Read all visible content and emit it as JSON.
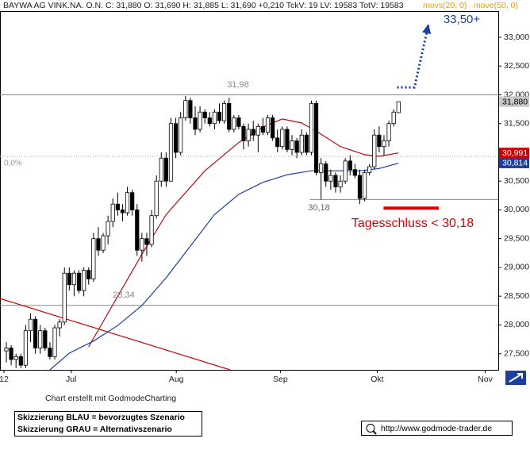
{
  "chart_data": {
    "type": "candlestick",
    "title": "BAYWA AG VINK.NA. O.N. C: 31,880 O: 31,690 H: 31,885 L: 31,690 +0,210 TckV: 19 LV: 19583 TotV: 19583",
    "open": [
      27.55,
      27.6,
      27.4,
      27.45,
      27.3,
      27.9,
      28.1,
      27.6,
      27.9,
      27.6,
      27.45,
      27.95,
      28.05,
      28.9,
      28.7,
      28.9,
      28.6,
      28.95,
      28.8,
      29.5,
      29.3,
      29.55,
      29.8,
      30.1,
      30.0,
      29.95,
      30.3,
      30.0,
      29.3,
      29.5,
      29.4,
      29.9,
      30.5,
      30.9,
      30.5,
      31.5,
      31.0,
      31.6,
      31.9,
      31.6,
      31.4,
      31.7,
      31.6,
      31.5,
      31.7,
      31.55,
      31.85,
      31.4,
      31.6,
      31.45,
      31.2,
      31.4,
      31.3,
      31.45,
      31.35,
      31.6,
      31.25,
      31.1,
      31.4,
      31.05,
      31.2,
      31.0,
      31.3,
      31.0,
      31.85,
      30.65,
      30.8,
      30.5,
      30.6,
      30.4,
      30.5,
      30.85,
      30.7,
      30.6,
      30.2,
      30.65,
      30.75,
      31.3,
      31.1,
      31.2,
      31.5,
      31.69
    ],
    "high": [
      27.7,
      27.65,
      27.5,
      27.5,
      28.0,
      28.2,
      28.15,
      28.0,
      27.95,
      27.7,
      28.0,
      28.1,
      29.0,
      29.0,
      28.95,
      28.95,
      29.0,
      29.0,
      29.6,
      29.7,
      29.6,
      29.9,
      30.2,
      30.3,
      30.1,
      30.4,
      30.35,
      30.1,
      29.6,
      29.6,
      30.0,
      30.6,
      31.0,
      31.0,
      31.6,
      31.6,
      31.7,
      31.98,
      31.95,
      31.8,
      31.8,
      31.75,
      31.7,
      31.75,
      31.85,
      31.9,
      31.95,
      31.65,
      31.65,
      31.5,
      31.5,
      31.55,
      31.5,
      31.6,
      31.65,
      31.65,
      31.4,
      31.45,
      31.45,
      31.3,
      31.25,
      31.4,
      31.35,
      31.9,
      31.9,
      30.9,
      30.85,
      30.7,
      30.65,
      30.6,
      30.9,
      30.95,
      30.8,
      30.7,
      30.7,
      30.8,
      31.4,
      31.45,
      31.3,
      31.55,
      31.75,
      31.885
    ],
    "low": [
      27.35,
      27.3,
      27.25,
      27.25,
      27.25,
      27.7,
      27.5,
      27.5,
      27.55,
      27.4,
      27.4,
      27.8,
      28.0,
      28.6,
      28.5,
      28.55,
      28.5,
      28.7,
      28.75,
      29.2,
      29.25,
      29.4,
      29.7,
      29.9,
      29.8,
      29.9,
      29.9,
      29.2,
      29.1,
      29.2,
      29.35,
      29.85,
      30.4,
      30.4,
      30.5,
      30.9,
      30.95,
      31.55,
      31.5,
      31.3,
      31.35,
      31.5,
      31.45,
      31.4,
      31.5,
      31.5,
      31.35,
      31.35,
      31.4,
      31.05,
      31.1,
      31.2,
      31.0,
      31.3,
      31.3,
      31.2,
      31.0,
      31.05,
      31.0,
      30.95,
      30.9,
      30.95,
      30.95,
      30.95,
      30.6,
      30.18,
      30.4,
      30.35,
      30.3,
      30.3,
      30.45,
      30.6,
      30.55,
      30.1,
      30.15,
      30.6,
      30.7,
      31.0,
      30.95,
      31.1,
      31.45,
      31.69
    ],
    "close": [
      27.6,
      27.4,
      27.45,
      27.3,
      27.9,
      28.1,
      27.6,
      27.9,
      27.6,
      27.45,
      27.95,
      28.05,
      28.9,
      28.7,
      28.9,
      28.6,
      28.95,
      28.8,
      29.5,
      29.3,
      29.55,
      29.8,
      30.1,
      30.0,
      29.95,
      30.3,
      30.0,
      29.3,
      29.5,
      29.4,
      29.9,
      30.5,
      30.9,
      30.5,
      31.5,
      31.0,
      31.6,
      31.9,
      31.6,
      31.4,
      31.7,
      31.6,
      31.5,
      31.7,
      31.55,
      31.85,
      31.4,
      31.6,
      31.45,
      31.2,
      31.4,
      31.3,
      31.45,
      31.35,
      31.6,
      31.25,
      31.1,
      31.4,
      31.05,
      31.2,
      31.0,
      31.3,
      31.0,
      31.85,
      30.65,
      30.8,
      30.5,
      30.6,
      30.4,
      30.5,
      30.85,
      30.7,
      30.6,
      30.2,
      30.65,
      30.75,
      31.3,
      31.1,
      31.2,
      31.5,
      31.7,
      31.88
    ],
    "up_color": "#ffffff",
    "down_color": "#000000",
    "series": [
      {
        "name": "movs(20, 0)",
        "color": "#b01010",
        "x": [
          17,
          28,
          33,
          41,
          48,
          53,
          57,
          61,
          64,
          69,
          74,
          77,
          81
        ],
        "values": [
          27.62,
          29.23,
          29.92,
          30.68,
          31.17,
          31.44,
          31.58,
          31.51,
          31.37,
          31.1,
          30.96,
          30.93,
          30.99
        ]
      },
      {
        "name": "move(50, 0)",
        "color": "#1a3fa0",
        "x": [
          9,
          13,
          18,
          23,
          28,
          33,
          38,
          43,
          48,
          53,
          58,
          63,
          68,
          73,
          77,
          81
        ],
        "values": [
          27.22,
          27.51,
          27.72,
          27.99,
          28.34,
          28.82,
          29.37,
          29.92,
          30.27,
          30.48,
          30.61,
          30.68,
          30.68,
          30.68,
          30.72,
          30.81
        ]
      }
    ],
    "legend_color": "#e0a000",
    "xlim": [
      -1.31,
      101.6
    ],
    "xticks": [
      {
        "value": -0.5,
        "label": "12"
      },
      {
        "value": 13.4,
        "label": "Jul"
      },
      {
        "value": 35.1,
        "label": "Aug"
      },
      {
        "value": 56.6,
        "label": "Sep"
      },
      {
        "value": 76.6,
        "label": "Okt"
      },
      {
        "value": 98.9,
        "label": "Nov"
      }
    ],
    "ylim": [
      27.22,
      33.455
    ],
    "yticks": [
      {
        "value": 27.5,
        "label": "27,500"
      },
      {
        "value": 28,
        "label": "28,000"
      },
      {
        "value": 28.5,
        "label": "28,500"
      },
      {
        "value": 29,
        "label": "29,000"
      },
      {
        "value": 29.5,
        "label": "29,500"
      },
      {
        "value": 30,
        "label": "30,000"
      },
      {
        "value": 30.5,
        "label": "30,500"
      },
      {
        "value": 31,
        "label": "31,000"
      },
      {
        "value": 31.5,
        "label": "31,500"
      },
      {
        "value": 32,
        "label": "32,000"
      },
      {
        "value": 32.5,
        "label": "32,500"
      },
      {
        "value": 33,
        "label": "33,000"
      }
    ],
    "last_prices": [
      {
        "value": 31.88,
        "label": "31,880",
        "color": "#c8c8c8"
      },
      {
        "value": 30.991,
        "label": "30,991",
        "color": "#cc0000"
      },
      {
        "value": 30.814,
        "label": "30,814",
        "color": "#1a3fa0"
      }
    ],
    "levels": [
      {
        "value": 32,
        "style": "solid"
      },
      {
        "value": 30.93,
        "style": "dotted"
      },
      {
        "value": 28.34,
        "style": "solid"
      },
      {
        "value": 30.18,
        "style": "solid",
        "x_from": 62.7
      }
    ],
    "trendline": {
      "x": [
        -1.31,
        46.2
      ],
      "y": [
        28.46,
        27.22
      ],
      "color": "#cc0000"
    },
    "scenario_arrow": {
      "x": [
        80.7,
        84.3,
        87.2
      ],
      "y": [
        32.13,
        32.13,
        33.23
      ],
      "color": "#1a3fa0"
    },
    "stop_bar": {
      "x": [
        77.9,
        89.3
      ],
      "y": 30.03,
      "color": "#dd0000"
    },
    "annotations": [
      "31,98",
      "30,18",
      "28,34",
      "Tagesschluss < 30,18",
      "33,50+",
      "0,0%"
    ],
    "credit": "Chart erstellt mit GodmodeCharting",
    "notes": [
      "Skizzierung BLAU = bevorzugtes Szenario",
      "Skizzierung GRAU = Alternativszenario"
    ],
    "url": "http://www.godmode-trader.de"
  }
}
